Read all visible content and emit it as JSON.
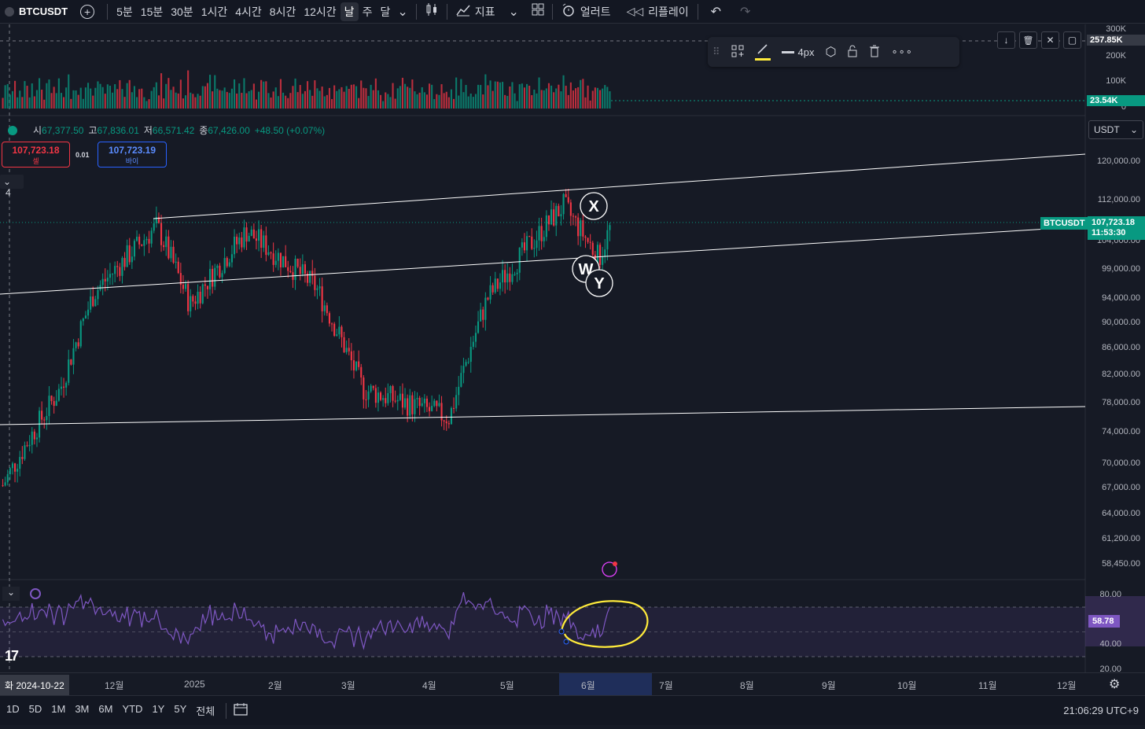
{
  "colors": {
    "up": "#089981",
    "down": "#f23645",
    "bg": "#161a25",
    "rsi": "#7e57c2",
    "annotation": "#ffeb3b"
  },
  "topbar": {
    "symbol": "BTCUSDT",
    "intervals": [
      "5분",
      "15분",
      "30분",
      "1시간",
      "4시간",
      "8시간",
      "12시간",
      "날",
      "주",
      "달"
    ],
    "active_interval": "날",
    "indicators_label": "지표",
    "alerts_label": "얼러트",
    "replay_label": "리플레이"
  },
  "volume_scale": {
    "labels": [
      "300K",
      "200K",
      "100K",
      "0"
    ],
    "marker": "257.85K",
    "current": "23.54K"
  },
  "draw_toolbar": {
    "width_label": "4px"
  },
  "legend": {
    "open_k": "시",
    "open": "67,377.50",
    "high_k": "고",
    "high": "67,836.01",
    "low_k": "저",
    "low": "66,571.42",
    "close_k": "종",
    "close": "67,426.00",
    "change": "+48.50 (+0.07%)"
  },
  "trade": {
    "sell_price": "107,723.18",
    "sell_label": "셀",
    "spread": "0.01",
    "buy_price": "107,723.19",
    "buy_label": "바이"
  },
  "currency": "USDT",
  "collapse_count": "4",
  "price_scale": [
    "120,000.00",
    "112,000.00",
    "104,000.00",
    "99,000.00",
    "94,000.00",
    "90,000.00",
    "86,000.00",
    "82,000.00",
    "78,000.00",
    "74,000.00",
    "70,000.00",
    "67,000.00",
    "64,000.00",
    "61,200.00",
    "58,450.00"
  ],
  "last_price": {
    "symbol": "BTCUSDT",
    "price": "107,723.18",
    "countdown": "11:53:30"
  },
  "wave_labels": [
    "X",
    "W",
    "Y"
  ],
  "rsi": {
    "labels": [
      "80.00",
      "40.00",
      "20.00"
    ],
    "value": "58.78"
  },
  "time_axis": {
    "cursor_date": "화 2024-10-22",
    "labels": [
      "12월",
      "2025",
      "2월",
      "3월",
      "4월",
      "5월",
      "6월",
      "7월",
      "8월",
      "9월",
      "10월",
      "11월",
      "12월"
    ]
  },
  "bottombar": {
    "ranges": [
      "1D",
      "5D",
      "1M",
      "3M",
      "6M",
      "YTD",
      "1Y",
      "5Y",
      "전체"
    ],
    "clock": "21:06:29 UTC+9"
  },
  "chart_data": {
    "type": "candlestick",
    "symbol": "BTCUSDT",
    "interval": "1D",
    "approx_closes": [
      {
        "date": "2024-10",
        "price": 67000
      },
      {
        "date": "2024-11-10",
        "price": 80000
      },
      {
        "date": "2024-11-20",
        "price": 95000
      },
      {
        "date": "2024-12-17",
        "price": 107000
      },
      {
        "date": "2024-12-31",
        "price": 93000
      },
      {
        "date": "2025-01-20",
        "price": 106000
      },
      {
        "date": "2025-02-20",
        "price": 96000
      },
      {
        "date": "2025-03-10",
        "price": 80000
      },
      {
        "date": "2025-04-08",
        "price": 76000
      },
      {
        "date": "2025-04-25",
        "price": 94000
      },
      {
        "date": "2025-05-22",
        "price": 111000
      },
      {
        "date": "2025-06-05",
        "price": 101000
      },
      {
        "date": "2025-06-10",
        "price": 107723
      }
    ],
    "price_range": [
      58450,
      122000
    ]
  }
}
